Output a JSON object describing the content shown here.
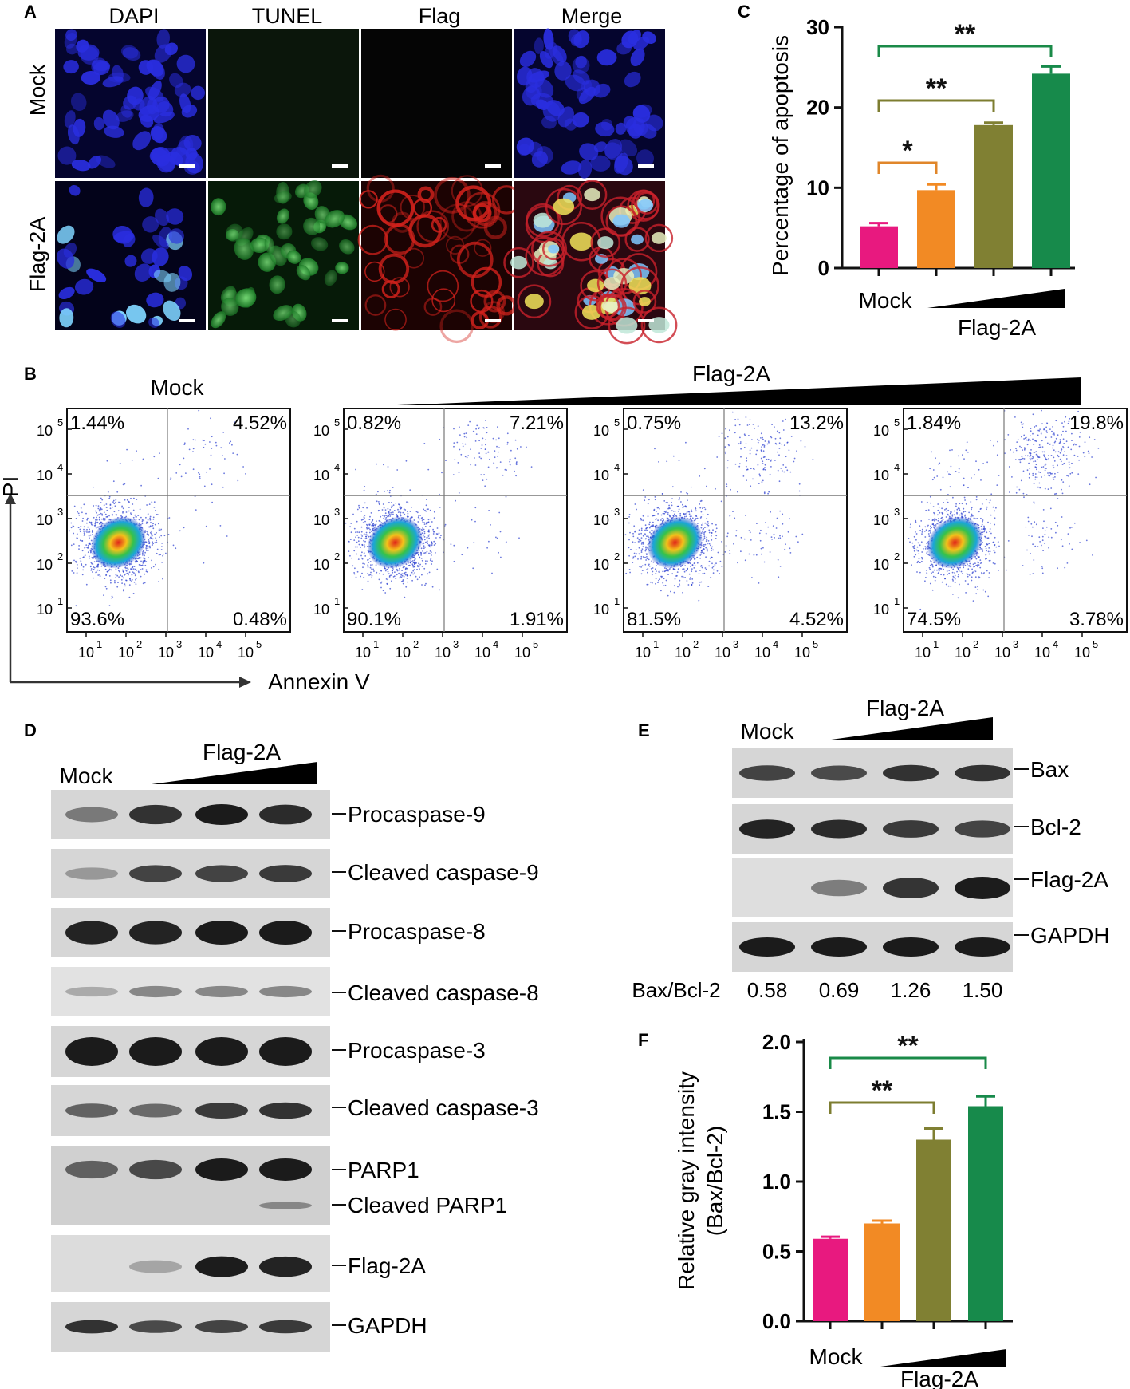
{
  "panel_letters": [
    "A",
    "B",
    "C",
    "D",
    "E",
    "F"
  ],
  "panelA": {
    "col_labels": [
      "DAPI",
      "TUNEL",
      "Flag",
      "Merge"
    ],
    "row_labels": [
      "Mock",
      "Flag-2A"
    ],
    "channel_colors": {
      "dapi": "#2a2ee0",
      "tunel": "#1fae2c",
      "flag": "#d3221c",
      "merge_bg": "#1a0b4a"
    }
  },
  "panelB": {
    "group_label": "Flag-2A",
    "mock_label": "Mock",
    "y_axis_label": "PI",
    "x_axis_label": "Annexin V",
    "tick_base": "10",
    "y_tick_exponents": [
      "1",
      "2",
      "3",
      "4",
      "5"
    ],
    "x_tick_exponents": [
      "1",
      "2",
      "3",
      "4",
      "5"
    ],
    "plots": [
      {
        "q_ul": "1.44%",
        "q_ur": "4.52%",
        "q_ll": "93.6%",
        "q_lr": "0.48%"
      },
      {
        "q_ul": "0.82%",
        "q_ur": "7.21%",
        "q_ll": "90.1%",
        "q_lr": "1.91%"
      },
      {
        "q_ul": "0.75%",
        "q_ur": "13.2%",
        "q_ll": "81.5%",
        "q_lr": "4.52%"
      },
      {
        "q_ul": "1.84%",
        "q_ur": "19.8%",
        "q_ll": "74.5%",
        "q_lr": "3.78%"
      }
    ]
  },
  "panelD": {
    "mock_label": "Mock",
    "flag_label": "Flag-2A",
    "bands": [
      "Procaspase-9",
      "Cleaved caspase-9",
      "Procaspase-8",
      "Cleaved caspase-8",
      "Procaspase-3",
      "Cleaved caspase-3",
      "PARP1",
      "Cleaved PARP1",
      "Flag-2A",
      "GAPDH"
    ]
  },
  "panelE": {
    "mock_label": "Mock",
    "flag_label": "Flag-2A",
    "bands": [
      "Bax",
      "Bcl-2",
      "Flag-2A",
      "GAPDH"
    ],
    "ratio_label": "Bax/Bcl-2",
    "ratio_values": [
      "0.58",
      "0.69",
      "1.26",
      "1.50"
    ]
  },
  "chart_data": [
    {
      "panel": "C",
      "type": "bar",
      "title": "",
      "xlabel": "",
      "ylabel": "Percentage of apoptosis",
      "categories": [
        "Mock",
        "Flag-2A (low)",
        "Flag-2A (mid)",
        "Flag-2A (high)"
      ],
      "category_labels": {
        "mock": "Mock",
        "group": "Flag-2A"
      },
      "values": [
        5.2,
        9.7,
        17.8,
        24.2
      ],
      "errors": [
        0.4,
        0.7,
        0.3,
        0.9
      ],
      "colors": [
        "#e8197f",
        "#f28a24",
        "#808033",
        "#178a4b"
      ],
      "ylim": [
        0,
        30
      ],
      "yticks": [
        "0",
        "10",
        "20",
        "30"
      ],
      "significance": [
        {
          "from": 0,
          "to": 1,
          "label": "*",
          "color": "#e0862a"
        },
        {
          "from": 0,
          "to": 2,
          "label": "**",
          "color": "#7d7d30"
        },
        {
          "from": 0,
          "to": 3,
          "label": "**",
          "color": "#1a8a48"
        }
      ]
    },
    {
      "panel": "F",
      "type": "bar",
      "title": "",
      "xlabel": "",
      "ylabel": "Relative gray intensity",
      "ylabel2": "(Bax/Bcl-2)",
      "categories": [
        "Mock",
        "Flag-2A (low)",
        "Flag-2A (mid)",
        "Flag-2A (high)"
      ],
      "category_labels": {
        "mock": "Mock",
        "group": "Flag-2A"
      },
      "values": [
        0.59,
        0.7,
        1.3,
        1.54
      ],
      "errors": [
        0.015,
        0.02,
        0.08,
        0.07
      ],
      "colors": [
        "#e8197f",
        "#f28a24",
        "#808033",
        "#178a4b"
      ],
      "ylim": [
        0,
        2.0
      ],
      "yticks": [
        "0.0",
        "0.5",
        "1.0",
        "1.5",
        "2.0"
      ],
      "significance": [
        {
          "from": 0,
          "to": 2,
          "label": "**",
          "color": "#7d7d30"
        },
        {
          "from": 0,
          "to": 3,
          "label": "**",
          "color": "#1a8a48"
        }
      ]
    }
  ]
}
